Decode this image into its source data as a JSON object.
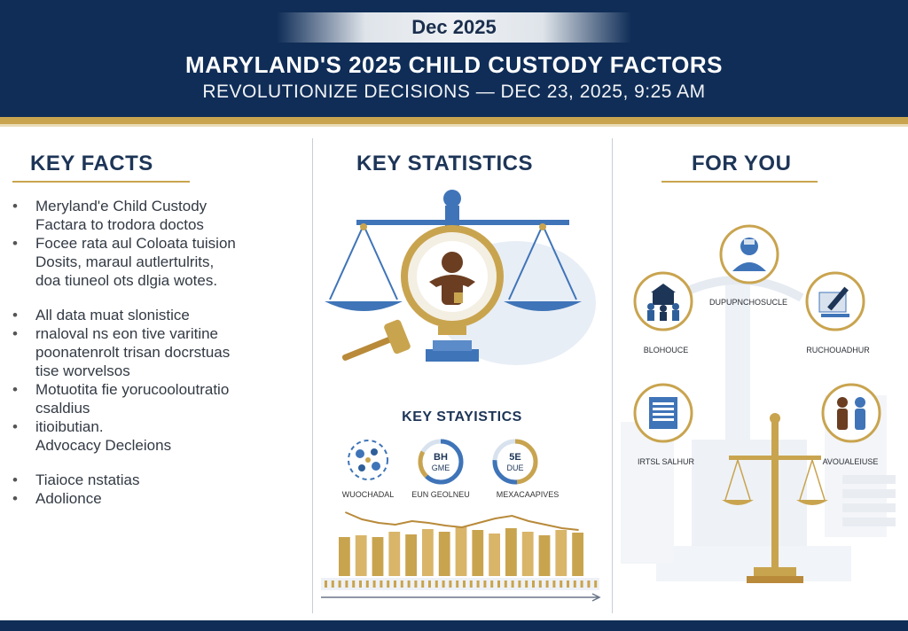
{
  "header": {
    "date": "Dec 2025",
    "title": "MARYLAND'S 2025 CHILD CUSTODY FACTORS",
    "subtitle": "REVOLUTIONIZE DECISIONS — DEC 23, 2025, 9:25 AM"
  },
  "key_facts": {
    "heading": "KEY FACTS",
    "items": [
      {
        "bullet": true,
        "text": "Meryland'e Child Custody",
        "gap": false
      },
      {
        "bullet": false,
        "text": "Factara to trodora doctos",
        "gap": false
      },
      {
        "bullet": true,
        "text": "Focee rata aul Coloata tuision",
        "gap": false
      },
      {
        "bullet": false,
        "text": "Dosits, maraul autlertulrits,",
        "gap": false
      },
      {
        "bullet": false,
        "text": "doa tiuneol ots dlgia wotes.",
        "gap": false
      },
      {
        "bullet": true,
        "text": "All data muat slonistice",
        "gap": true
      },
      {
        "bullet": true,
        "text": "rnaloval ns eon tive varitine",
        "gap": false
      },
      {
        "bullet": false,
        "text": "poonatenrolt trisan docrstuas",
        "gap": false
      },
      {
        "bullet": false,
        "text": "tise worvelsos",
        "gap": false
      },
      {
        "bullet": true,
        "text": "Motuotita fie yorucooloutratio",
        "gap": false
      },
      {
        "bullet": false,
        "text": "csaldius",
        "gap": false
      },
      {
        "bullet": true,
        "text": "itioibutian.",
        "gap": false
      },
      {
        "bullet": false,
        "text": "Advocacy Decleions",
        "gap": false
      },
      {
        "bullet": true,
        "text": "Tiaioce nstatias",
        "gap": true
      },
      {
        "bullet": true,
        "text": "Adolionce",
        "gap": false
      }
    ]
  },
  "key_statistics": {
    "heading": "KEY STATISTICS",
    "subheading": "KEY STAYISTICS",
    "stat_labels": [
      "WUOCHADAL",
      "EUN GEOLNEU",
      "MEXACAAPIVES"
    ],
    "ring1_text": [
      "BH",
      "GME"
    ],
    "ring2_text": [
      "5E",
      "DUE"
    ],
    "bar_values": [
      44,
      46,
      44,
      50,
      47,
      53,
      50,
      56,
      52,
      48,
      54,
      50,
      46,
      52,
      49
    ],
    "line_values": [
      62,
      54,
      50,
      48,
      52,
      50,
      47,
      45,
      50,
      55,
      58,
      52,
      48,
      44,
      42
    ]
  },
  "for_you": {
    "heading": "FOR YOU",
    "labels": [
      "DUPUPNCHOSUCLE",
      "BLOHOUCE",
      "RUCHOUADHUR",
      "IRTSL SALHUR",
      "AVOUALEIUSE"
    ]
  },
  "colors": {
    "navy": "#0f2d57",
    "gold": "#c9a44f",
    "blue": "#3f74b8",
    "brown": "#6b3e22"
  }
}
